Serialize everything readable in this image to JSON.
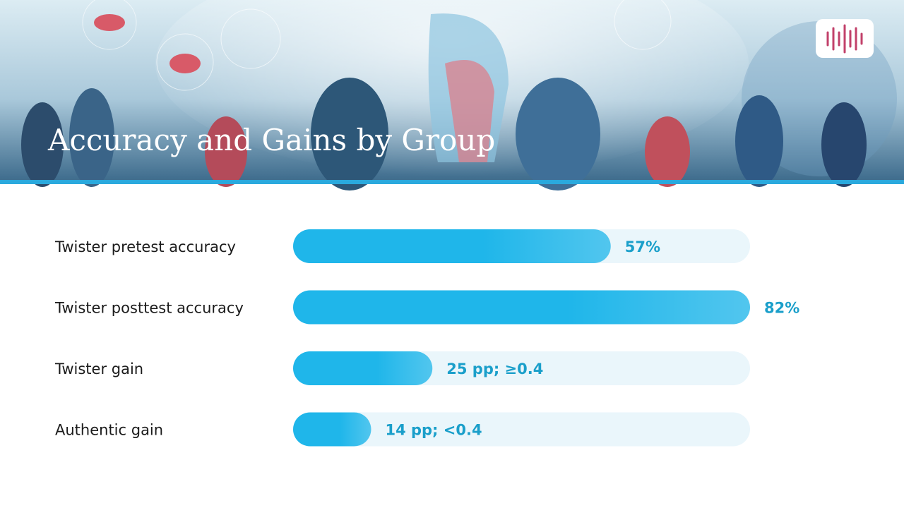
{
  "chart_data": {
    "type": "bar",
    "orientation": "horizontal",
    "title": "Accuracy and Gains by Group",
    "categories": [
      "Twister pretest accuracy",
      "Twister posttest accuracy",
      "Twister gain",
      "Authentic gain"
    ],
    "values": [
      57,
      82,
      25,
      14
    ],
    "value_labels": [
      "57%",
      "82%",
      "25 pp; ≥0.4",
      "14 pp; <0.4"
    ],
    "color": "#1fb6ea",
    "xlim": [
      0,
      82
    ]
  }
}
